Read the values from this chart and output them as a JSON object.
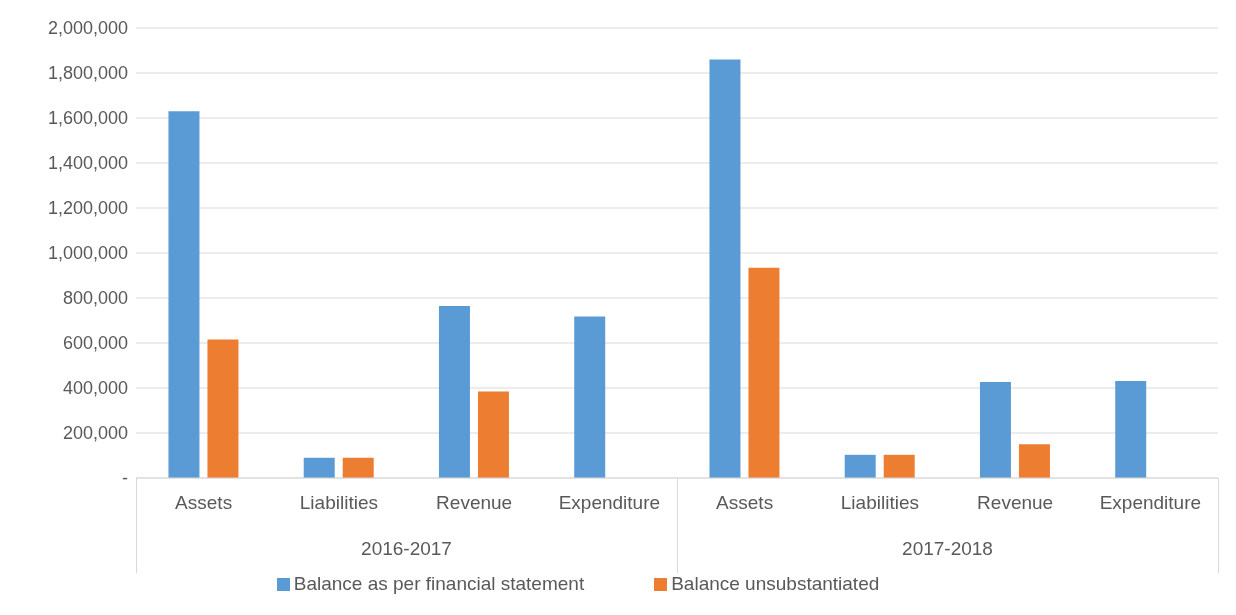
{
  "chart_data": {
    "type": "bar",
    "categories": [
      "Assets",
      "Liabilities",
      "Revenue",
      "Expenditure",
      "Assets",
      "Liabilities",
      "Revenue",
      "Expenditure"
    ],
    "series": [
      {
        "name": "Balance as per financial statement",
        "color": "#5b9bd5",
        "values": [
          1630000,
          90000,
          765000,
          718000,
          1860000,
          103000,
          427000,
          431000
        ]
      },
      {
        "name": "Balance unsubstantiated",
        "color": "#ed7d31",
        "values": [
          616000,
          90000,
          385000,
          null,
          935000,
          103000,
          150000,
          null
        ]
      }
    ],
    "annotations": [
      "2016-2017",
      "2017-2018"
    ],
    "ylim": [
      0,
      2000000
    ],
    "yticks": [
      {
        "value": 0,
        "label": "-"
      },
      {
        "value": 200000,
        "label": "200,000"
      },
      {
        "value": 400000,
        "label": "400,000"
      },
      {
        "value": 600000,
        "label": "600,000"
      },
      {
        "value": 800000,
        "label": "800,000"
      },
      {
        "value": 1000000,
        "label": "1,000,000"
      },
      {
        "value": 1200000,
        "label": "1,200,000"
      },
      {
        "value": 1400000,
        "label": "1,400,000"
      },
      {
        "value": 1600000,
        "label": "1,600,000"
      },
      {
        "value": 1800000,
        "label": "1,800,000"
      },
      {
        "value": 2000000,
        "label": "2,000,000"
      }
    ],
    "grid": "y",
    "legend": "bottom"
  }
}
